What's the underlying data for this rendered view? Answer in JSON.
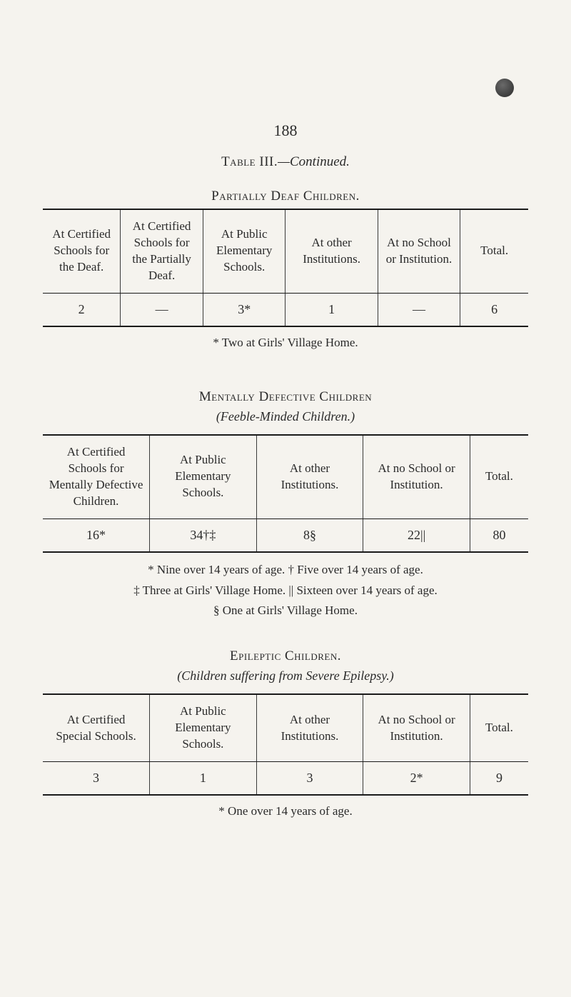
{
  "page_number": "188",
  "title": {
    "smallcaps": "Table III.",
    "italic": "—Continued."
  },
  "table1": {
    "heading": "Partially Deaf Children.",
    "columns": [
      "At Certified Schools for the Deaf.",
      "At Certified Schools for the Partially Deaf.",
      "At Public Elementary Schools.",
      "At other Institutions.",
      "At no School or Institution.",
      "Total."
    ],
    "rows": [
      [
        "2",
        "—",
        "3*",
        "1",
        "—",
        "6"
      ]
    ],
    "footnote": "* Two at Girls' Village Home."
  },
  "table2": {
    "heading": "Mentally Defective Children",
    "subheading": "(Feeble-Minded Children.)",
    "columns": [
      "At Certified Schools for Mentally Defective Children.",
      "At Public Elementary Schools.",
      "At other Institutions.",
      "At no School or Institution.",
      "Total."
    ],
    "rows": [
      [
        "16*",
        "34†‡",
        "8§",
        "22||",
        "80"
      ]
    ],
    "footnotes": [
      "* Nine over 14 years of age.    † Five over 14 years of age.",
      "‡ Three at Girls' Village Home.   || Sixteen over 14 years of age.",
      "§ One at Girls' Village Home."
    ]
  },
  "table3": {
    "heading": "Epileptic Children.",
    "subheading": "(Children suffering from Severe Epilepsy.)",
    "columns": [
      "At Certified Special Schools.",
      "At Public Elementary Schools.",
      "At other Institutions.",
      "At no School or Institution.",
      "Total."
    ],
    "rows": [
      [
        "3",
        "1",
        "3",
        "2*",
        "9"
      ]
    ],
    "footnote": "* One over 14 years of age."
  }
}
